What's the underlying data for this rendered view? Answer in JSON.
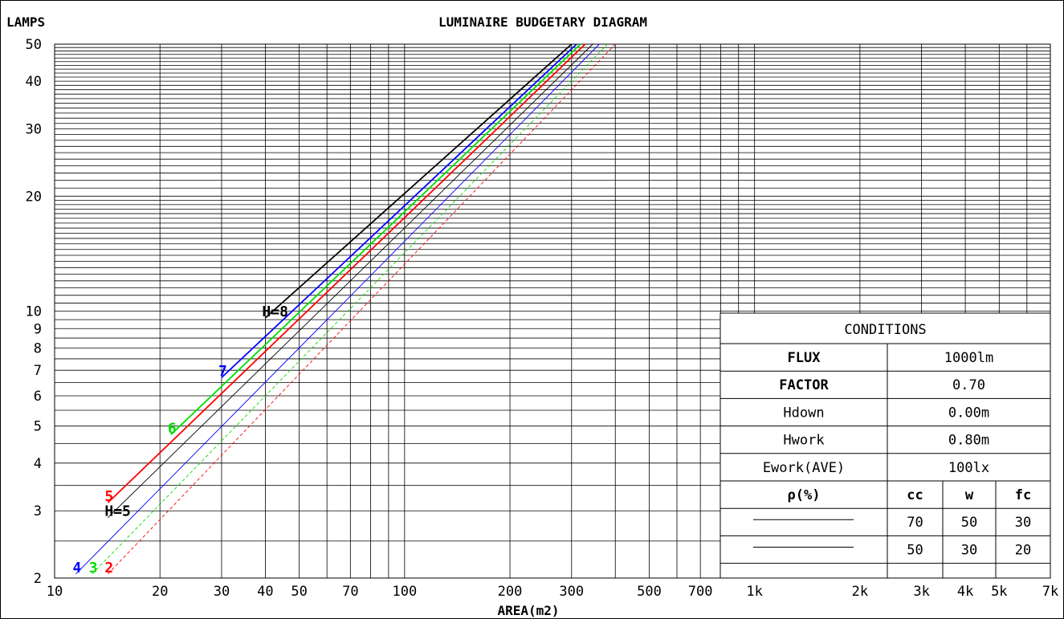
{
  "chart_data": {
    "type": "line",
    "title": "LUMINAIRE BUDGETARY DIAGRAM",
    "ylabel": "LAMPS",
    "xlabel": "AREA(m2)",
    "x_scale": "log",
    "y_scale": "log",
    "xlim": [
      10,
      7000
    ],
    "ylim": [
      2,
      50
    ],
    "x_ticks": [
      {
        "v": 10,
        "t": "10"
      },
      {
        "v": 20,
        "t": "20"
      },
      {
        "v": 30,
        "t": "30"
      },
      {
        "v": 40,
        "t": "40"
      },
      {
        "v": 50,
        "t": "50"
      },
      {
        "v": 70,
        "t": "70"
      },
      {
        "v": 100,
        "t": "100"
      },
      {
        "v": 200,
        "t": "200"
      },
      {
        "v": 300,
        "t": "300"
      },
      {
        "v": 500,
        "t": "500"
      },
      {
        "v": 700,
        "t": "700"
      },
      {
        "v": 1000,
        "t": "1k"
      },
      {
        "v": 2000,
        "t": "2k"
      },
      {
        "v": 3000,
        "t": "3k"
      },
      {
        "v": 4000,
        "t": "4k"
      },
      {
        "v": 5000,
        "t": "5k"
      },
      {
        "v": 7000,
        "t": "7k"
      }
    ],
    "y_ticks": [
      {
        "v": 2,
        "t": "2"
      },
      {
        "v": 3,
        "t": "3"
      },
      {
        "v": 4,
        "t": "4"
      },
      {
        "v": 5,
        "t": "5"
      },
      {
        "v": 6,
        "t": "6"
      },
      {
        "v": 7,
        "t": "7"
      },
      {
        "v": 8,
        "t": "8"
      },
      {
        "v": 9,
        "t": "9"
      },
      {
        "v": 10,
        "t": "10"
      },
      {
        "v": 20,
        "t": "20"
      },
      {
        "v": 30,
        "t": "30"
      },
      {
        "v": 40,
        "t": "40"
      },
      {
        "v": 50,
        "t": "50"
      }
    ],
    "series": [
      {
        "label": "H=8",
        "color": "#000000",
        "style": "solid",
        "x": [
          40,
          300
        ],
        "y": [
          9.6,
          50
        ]
      },
      {
        "label": "7",
        "color": "#0000ff",
        "style": "solid",
        "x": [
          30,
          310
        ],
        "y": [
          6.7,
          50
        ]
      },
      {
        "label": "6",
        "color": "#00dd00",
        "style": "solid",
        "x": [
          21.5,
          318
        ],
        "y": [
          4.75,
          50
        ]
      },
      {
        "label": "5",
        "color": "#ff0000",
        "style": "solid",
        "x": [
          14.2,
          328
        ],
        "y": [
          3.15,
          50
        ]
      },
      {
        "label": "H=5",
        "color": "#000000",
        "style": "solid",
        "x": [
          14.2,
          345
        ],
        "y": [
          2.88,
          50
        ]
      },
      {
        "label": "4",
        "color": "#0000ff",
        "style": "solid",
        "x": [
          11.5,
          360
        ],
        "y": [
          2.05,
          50
        ]
      },
      {
        "label": "3",
        "color": "#00dd00",
        "style": "dashed",
        "x": [
          12.8,
          380
        ],
        "y": [
          2.05,
          50
        ]
      },
      {
        "label": "2",
        "color": "#ff0000",
        "style": "dashed",
        "x": [
          14.2,
          400
        ],
        "y": [
          2.05,
          50
        ]
      }
    ],
    "conditions": {
      "title": "CONDITIONS",
      "rows": [
        {
          "k": "FLUX",
          "v": "1000lm"
        },
        {
          "k": "FACTOR",
          "v": "0.70"
        },
        {
          "k": "Hdown",
          "v": "0.00m"
        },
        {
          "k": "Hwork",
          "v": "0.80m"
        },
        {
          "k": "Ework(AVE)",
          "v": "100lx"
        }
      ],
      "rho_label": "ρ(%)",
      "rho_headers": [
        "cc",
        "w",
        "fc"
      ],
      "rho_rows": [
        [
          "70",
          "50",
          "30"
        ],
        [
          "50",
          "30",
          "20"
        ]
      ]
    }
  }
}
